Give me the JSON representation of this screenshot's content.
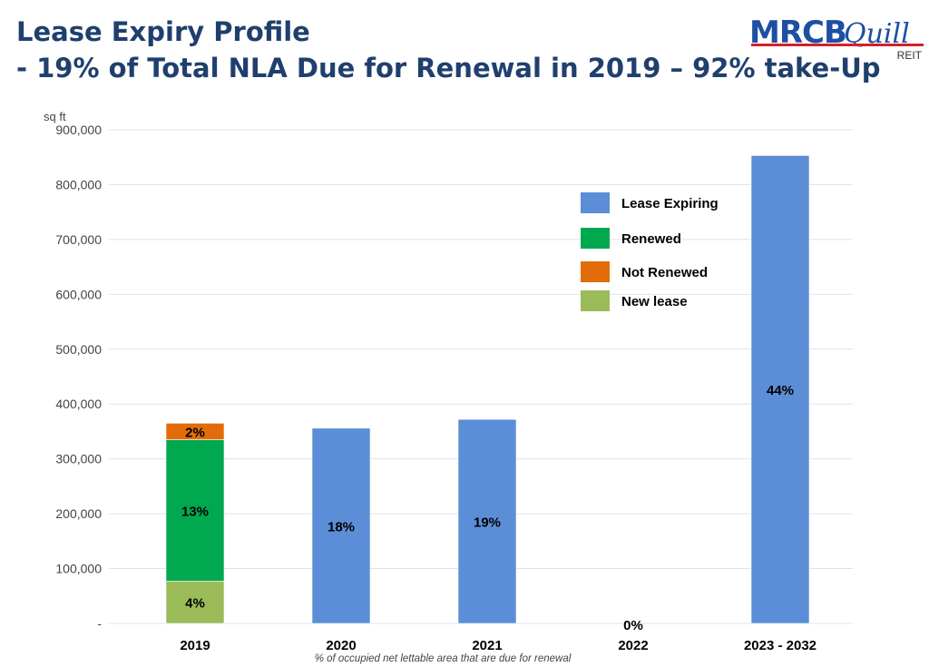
{
  "header": {
    "title_line1": "Lease Expiry Profile",
    "title_line2": "- 19% of Total NLA Due for Renewal in 2019 – 92% take-Up"
  },
  "logo": {
    "brand": "MRCB",
    "sub_brand": "Quill",
    "tag": "REIT"
  },
  "colors": {
    "title": "#1f3f6e",
    "lease_expiring": "#5b8ed6",
    "renewed": "#00a850",
    "not_renewed": "#e36c0a",
    "new_lease": "#9bbb59",
    "gridline": "#dbe4f0"
  },
  "chart_data": {
    "type": "bar",
    "stacked": true,
    "ylabel": "sq ft",
    "ylim": [
      0,
      900000
    ],
    "yticks": [
      "-",
      "100,000",
      "200,000",
      "300,000",
      "400,000",
      "500,000",
      "600,000",
      "700,000",
      "800,000",
      "900,000"
    ],
    "categories": [
      "2019",
      "2020",
      "2021",
      "2022",
      "2023 - 2032"
    ],
    "series": [
      {
        "name": "Lease Expiring",
        "values": [
          0,
          356000,
          372000,
          0,
          853000
        ],
        "labels": [
          "",
          "18%",
          "19%",
          "0%",
          "44%"
        ]
      },
      {
        "name": "Renewed",
        "values": [
          258000,
          0,
          0,
          0,
          0
        ],
        "labels": [
          "13%",
          "",
          "",
          "",
          ""
        ]
      },
      {
        "name": "Not Renewed",
        "values": [
          30000,
          0,
          0,
          0,
          0
        ],
        "labels": [
          "2%",
          "",
          "",
          "",
          ""
        ]
      },
      {
        "name": "New lease",
        "values": [
          77000,
          0,
          0,
          0,
          0
        ],
        "labels": [
          "4%",
          "",
          "",
          "",
          ""
        ]
      }
    ],
    "stack_order": [
      "New lease",
      "Renewed",
      "Not Renewed",
      "Lease Expiring"
    ],
    "legend_position": "top-right",
    "grid": true,
    "footnote": "% of occupied net lettable area that are due for renewal"
  }
}
